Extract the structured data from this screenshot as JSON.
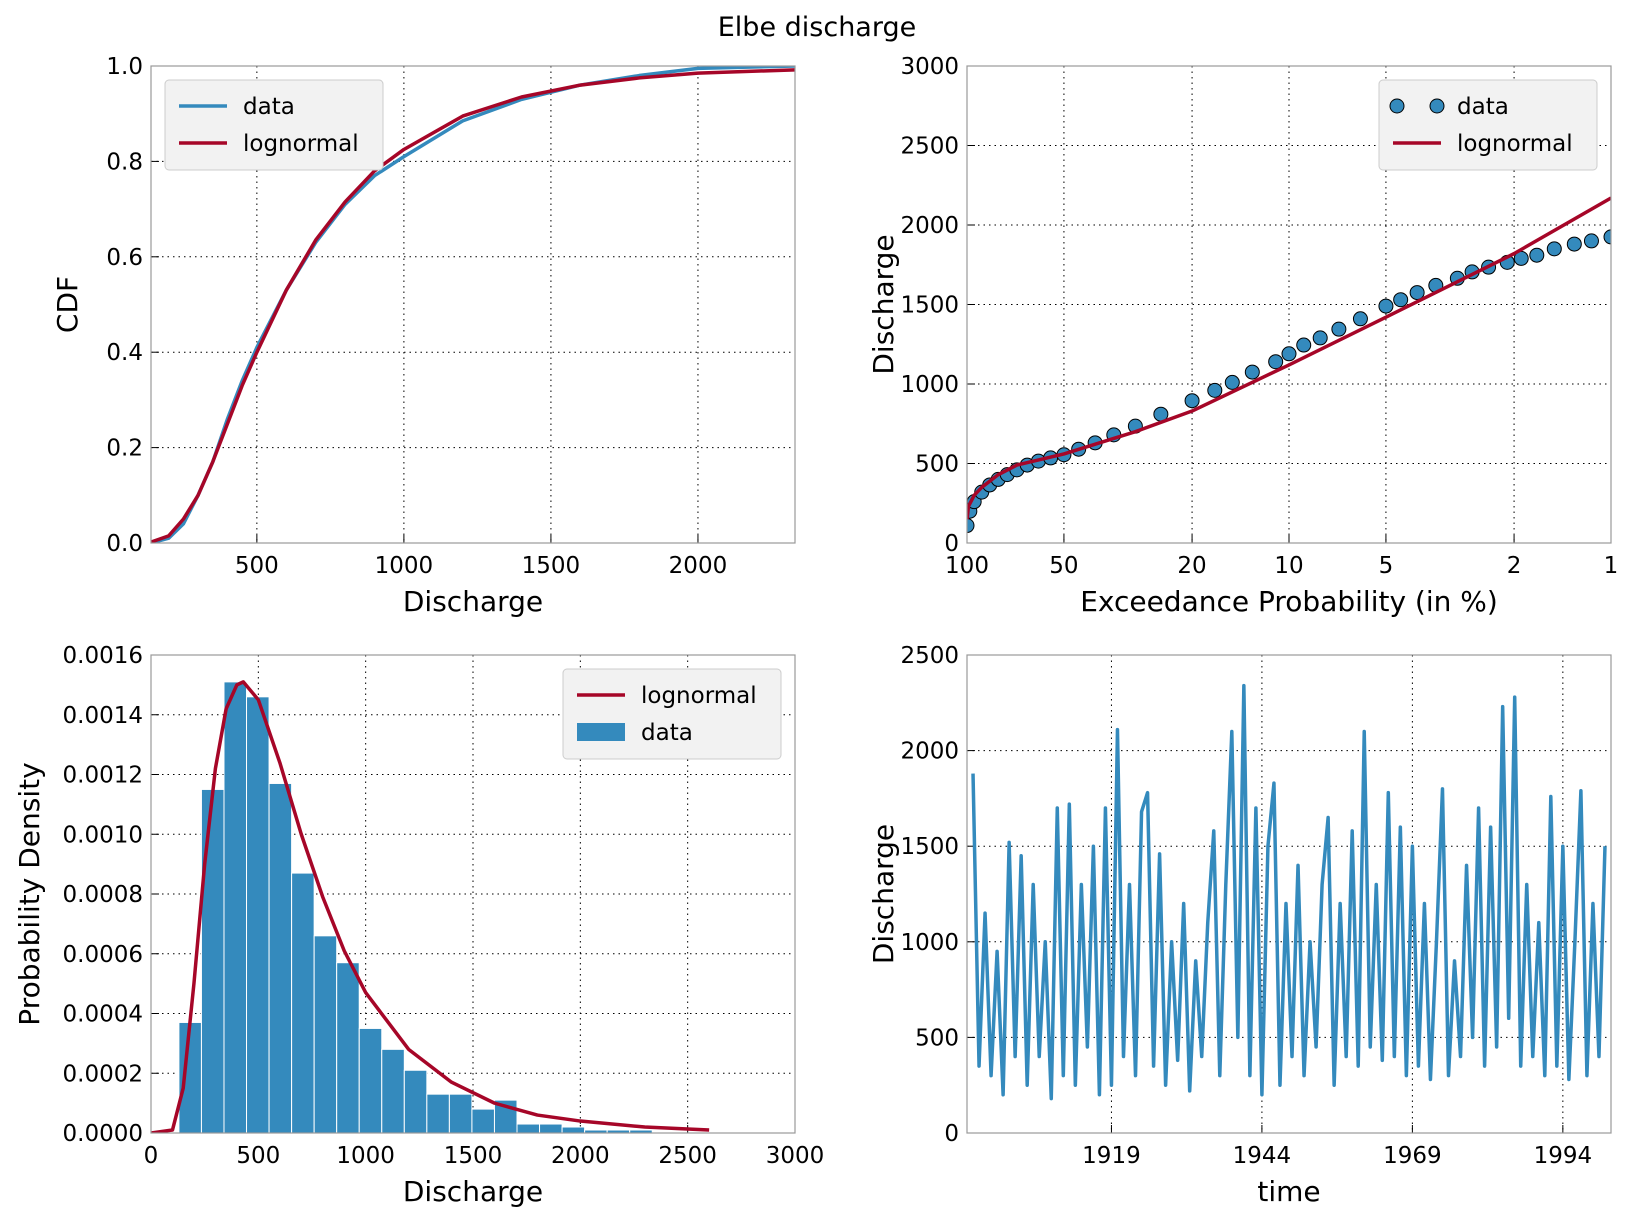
{
  "title": "Elbe discharge",
  "chart_data": [
    {
      "type": "line",
      "xlabel": "Discharge",
      "ylabel": "CDF",
      "xlim": [
        140,
        2330
      ],
      "ylim": [
        0,
        1
      ],
      "xticks": [
        500,
        1000,
        1500,
        2000
      ],
      "yticks": [
        {
          "value": 0,
          "label": "0.0"
        },
        0.2,
        0.4,
        0.6,
        0.8,
        {
          "value": 1,
          "label": "1.0"
        }
      ],
      "grid": true,
      "legend": "upper left",
      "series": [
        {
          "name": "data",
          "color": "#348abd",
          "style": "line",
          "x": [
            140,
            200,
            250,
            300,
            350,
            400,
            450,
            500,
            600,
            700,
            800,
            900,
            1000,
            1200,
            1400,
            1600,
            1800,
            2000,
            2330
          ],
          "values": [
            0,
            0.01,
            0.04,
            0.1,
            0.17,
            0.26,
            0.34,
            0.41,
            0.53,
            0.63,
            0.71,
            0.77,
            0.81,
            0.885,
            0.93,
            0.96,
            0.98,
            0.995,
            1
          ]
        },
        {
          "name": "lognormal",
          "color": "#a60628",
          "style": "line",
          "x": [
            140,
            200,
            250,
            300,
            350,
            400,
            450,
            500,
            600,
            700,
            800,
            900,
            1000,
            1200,
            1400,
            1600,
            1800,
            2000,
            2330
          ],
          "values": [
            0.002,
            0.015,
            0.05,
            0.1,
            0.17,
            0.25,
            0.33,
            0.4,
            0.53,
            0.635,
            0.715,
            0.78,
            0.825,
            0.895,
            0.935,
            0.96,
            0.975,
            0.985,
            0.992
          ]
        }
      ]
    },
    {
      "type": "scatter",
      "xlabel": "Exceedance Probability (in %)",
      "ylabel": "Discharge",
      "xscale": "log",
      "xlim": [
        100,
        1
      ],
      "ylim": [
        0,
        3000
      ],
      "xticks": [
        100,
        50,
        20,
        10,
        5,
        2,
        1
      ],
      "yticks": [
        0,
        500,
        1000,
        1500,
        2000,
        2500,
        3000
      ],
      "grid": true,
      "legend": "upper right",
      "series": [
        {
          "name": "data",
          "color": "#348abd",
          "style": "marker",
          "x": [
            100,
            98,
            95,
            90,
            85,
            80,
            75,
            70,
            65,
            60,
            55,
            50,
            45,
            40,
            35,
            30,
            25,
            20,
            17,
            15,
            13,
            11,
            10,
            9,
            8,
            7,
            6,
            5,
            4.5,
            4,
            3.5,
            3,
            2.7,
            2.4,
            2.1,
            1.9,
            1.7,
            1.5,
            1.3,
            1.15,
            1
          ],
          "values": [
            110,
            200,
            260,
            320,
            365,
            400,
            430,
            460,
            490,
            515,
            535,
            555,
            590,
            630,
            680,
            735,
            810,
            895,
            960,
            1010,
            1075,
            1140,
            1190,
            1245,
            1290,
            1345,
            1410,
            1490,
            1530,
            1575,
            1620,
            1665,
            1705,
            1735,
            1765,
            1790,
            1810,
            1850,
            1880,
            1900,
            1925
          ]
        },
        {
          "name": "lognormal",
          "color": "#a60628",
          "style": "line",
          "x": [
            99.9,
            99,
            95,
            90,
            80,
            70,
            50,
            30,
            20,
            10,
            5,
            2,
            1
          ],
          "values": [
            150,
            230,
            300,
            350,
            430,
            490,
            560,
            700,
            830,
            1120,
            1420,
            1820,
            2170
          ]
        }
      ]
    },
    {
      "type": "histogram",
      "xlabel": "Discharge",
      "ylabel": "Probability Density",
      "xlim": [
        0,
        3000
      ],
      "ylim": [
        0,
        0.0016
      ],
      "xticks": [
        0,
        500,
        1000,
        1500,
        2000,
        2500,
        3000
      ],
      "yticks": [
        {
          "value": 0,
          "label": "0.0000"
        },
        {
          "value": 0.0002,
          "label": "0.0002"
        },
        {
          "value": 0.0004,
          "label": "0.0004"
        },
        {
          "value": 0.0006,
          "label": "0.0006"
        },
        {
          "value": 0.0008,
          "label": "0.0008"
        },
        {
          "value": 0.001,
          "label": "0.0010"
        },
        {
          "value": 0.0012,
          "label": "0.0012"
        },
        {
          "value": 0.0014,
          "label": "0.0014"
        },
        {
          "value": 0.0016,
          "label": "0.0016"
        }
      ],
      "grid": true,
      "legend": "upper right",
      "series": [
        {
          "name": "lognormal",
          "color": "#a60628",
          "style": "line",
          "x": [
            0,
            100,
            150,
            200,
            250,
            300,
            350,
            400,
            430,
            500,
            600,
            700,
            800,
            900,
            1000,
            1200,
            1400,
            1600,
            1800,
            2000,
            2300,
            2600
          ],
          "values": [
            0,
            1e-05,
            0.00015,
            0.0005,
            0.0009,
            0.00122,
            0.00142,
            0.0015,
            0.00151,
            0.00145,
            0.00124,
            0.001,
            0.00079,
            0.00061,
            0.00047,
            0.00028,
            0.00017,
            0.0001,
            6e-05,
            4e-05,
            2e-05,
            1e-05
          ]
        },
        {
          "name": "data",
          "color": "#348abd",
          "style": "bar",
          "bins": [
            130,
            235,
            340,
            445,
            550,
            655,
            760,
            865,
            970,
            1075,
            1180,
            1285,
            1390,
            1495,
            1600,
            1705,
            1810,
            1915,
            2020,
            2125,
            2230,
            2335
          ],
          "values": [
            0.00037,
            0.00115,
            0.00151,
            0.00146,
            0.00117,
            0.00087,
            0.00066,
            0.00057,
            0.00035,
            0.00028,
            0.00021,
            0.00013,
            0.00013,
            8e-05,
            0.00011,
            3e-05,
            3e-05,
            2e-05,
            1e-05,
            1e-05,
            1e-05
          ]
        }
      ]
    },
    {
      "type": "line",
      "xlabel": "time",
      "ylabel": "Discharge",
      "xlim": [
        1895,
        2002
      ],
      "ylim": [
        0,
        2500
      ],
      "xticks": [
        1919,
        1944,
        1969,
        1994
      ],
      "yticks": [
        0,
        500,
        1000,
        1500,
        2000,
        2500
      ],
      "grid": true,
      "series": [
        {
          "name": "data",
          "color": "#348abd",
          "style": "line",
          "x": [
            1896,
            1897,
            1898,
            1899,
            1900,
            1901,
            1902,
            1903,
            1904,
            1905,
            1906,
            1907,
            1908,
            1909,
            1910,
            1911,
            1912,
            1913,
            1914,
            1915,
            1916,
            1917,
            1918,
            1919,
            1920,
            1921,
            1922,
            1923,
            1924,
            1925,
            1926,
            1927,
            1928,
            1929,
            1930,
            1931,
            1932,
            1933,
            1934,
            1935,
            1936,
            1937,
            1938,
            1939,
            1940,
            1941,
            1942,
            1943,
            1944,
            1945,
            1946,
            1947,
            1948,
            1949,
            1950,
            1951,
            1952,
            1953,
            1954,
            1955,
            1956,
            1957,
            1958,
            1959,
            1960,
            1961,
            1962,
            1963,
            1964,
            1965,
            1966,
            1967,
            1968,
            1969,
            1970,
            1971,
            1972,
            1973,
            1974,
            1975,
            1976,
            1977,
            1978,
            1979,
            1980,
            1981,
            1982,
            1983,
            1984,
            1985,
            1986,
            1987,
            1988,
            1989,
            1990,
            1991,
            1992,
            1993,
            1994,
            1995,
            1996,
            1997,
            1998,
            1999,
            2000,
            2001
          ],
          "values": [
            1880,
            350,
            1150,
            300,
            950,
            200,
            1520,
            400,
            1450,
            250,
            1300,
            400,
            1000,
            180,
            1700,
            300,
            1720,
            250,
            1300,
            450,
            1500,
            200,
            1700,
            250,
            2110,
            400,
            1300,
            300,
            1680,
            1780,
            350,
            1460,
            250,
            1000,
            380,
            1200,
            220,
            900,
            400,
            1100,
            1580,
            300,
            1300,
            2100,
            500,
            2340,
            300,
            1700,
            200,
            1500,
            1830,
            250,
            1200,
            400,
            1400,
            300,
            1000,
            450,
            1300,
            1650,
            250,
            1200,
            400,
            1580,
            350,
            2100,
            450,
            1300,
            380,
            1780,
            400,
            1600,
            300,
            1500,
            350,
            1200,
            280,
            1000,
            1800,
            300,
            900,
            400,
            1400,
            500,
            1700,
            350,
            1600,
            450,
            2230,
            600,
            2280,
            350,
            1300,
            400,
            1100,
            300,
            1760,
            350,
            1500,
            280,
            1000,
            1790,
            300,
            1200,
            400,
            1500
          ]
        }
      ]
    }
  ]
}
